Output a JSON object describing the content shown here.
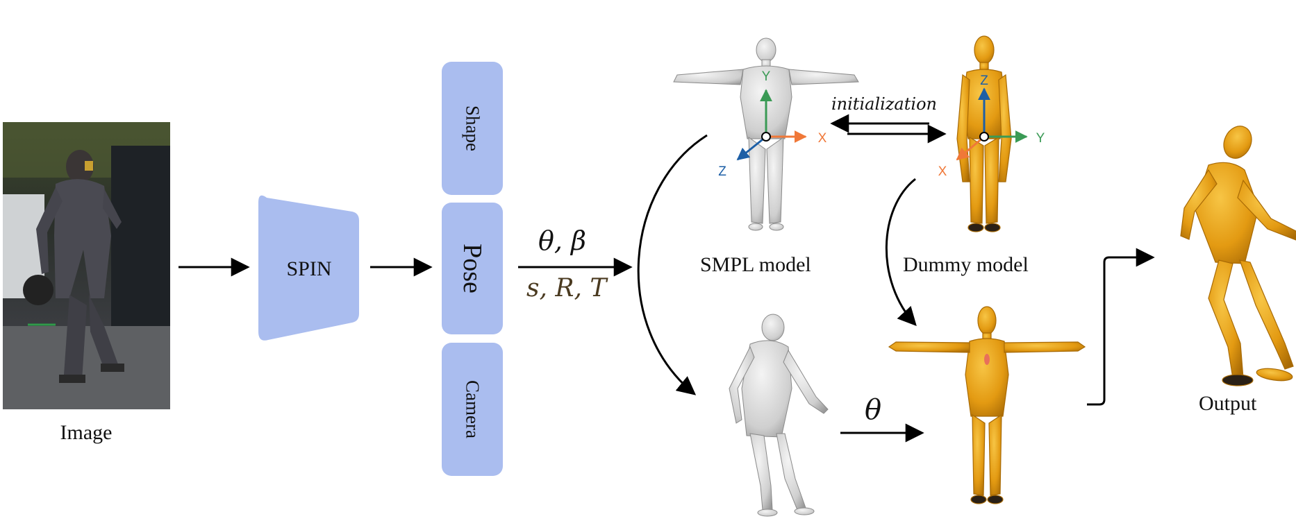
{
  "image_label": "Image",
  "spin_label": "SPIN",
  "params": {
    "shape": "Shape",
    "pose": "Pose",
    "camera": "Camera"
  },
  "arrow_top_label": "θ, β",
  "arrow_bottom_label": "s, R, T",
  "smpl_label": "SMPL model",
  "dummy_label": "Dummy model",
  "initialization_label": "initialization",
  "theta_label": "θ",
  "output_label": "Output",
  "axes": {
    "smpl": {
      "x": "X",
      "y": "Y",
      "z": "Z"
    },
    "dummy": {
      "x": "X",
      "y": "Y",
      "z": "Z"
    }
  },
  "colors": {
    "module_fill": "#aabdef",
    "dummy_fill": "#e8a015",
    "dummy_stroke": "#a86a05",
    "mesh_fill": "#dcdcdc",
    "axis_x": "#f07838",
    "axis_y": "#3a9a55",
    "axis_z": "#1d5fa6"
  }
}
